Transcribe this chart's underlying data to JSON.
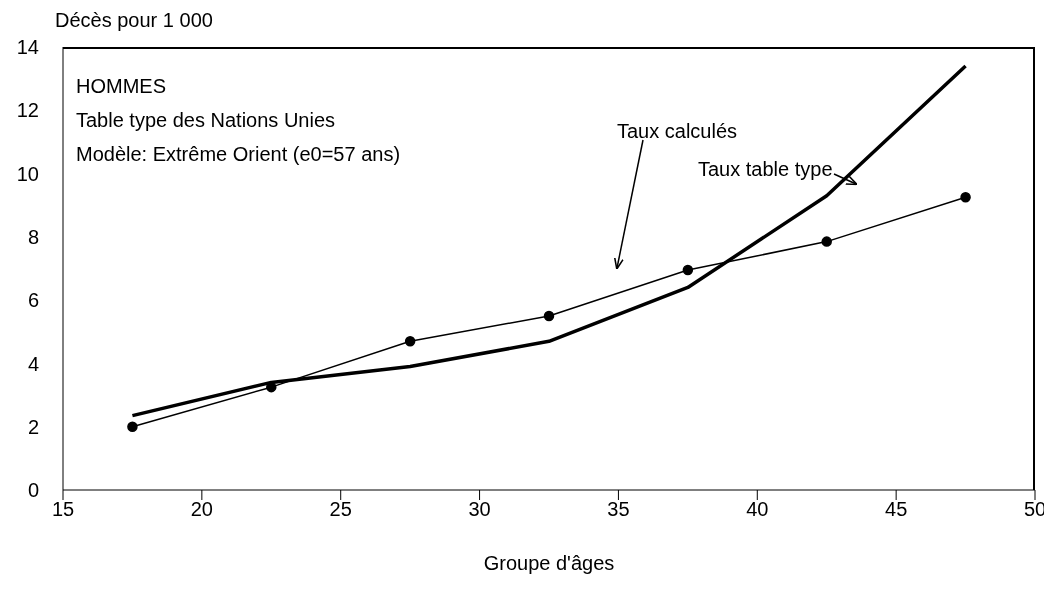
{
  "chart_data": {
    "type": "line",
    "xlabel": "Groupe d'âges",
    "ylabel": "Décès pour 1 000",
    "annotations": [
      "HOMMES",
      "Table type des Nations Unies",
      "Modèle: Extrême Orient (e0=57 ans)"
    ],
    "x": [
      17.5,
      22.5,
      27.5,
      32.5,
      37.5,
      42.5,
      47.5
    ],
    "series": [
      {
        "name": "Taux calculés",
        "color": "#000000",
        "marker": "circle",
        "values": [
          2.0,
          3.25,
          4.7,
          5.5,
          6.95,
          7.85,
          9.25
        ]
      },
      {
        "name": "Taux table type",
        "color": "#000000",
        "marker": "none",
        "values": [
          2.35,
          3.4,
          3.9,
          4.7,
          6.4,
          9.3,
          13.4
        ]
      }
    ],
    "xlim": [
      15,
      50
    ],
    "xticks": [
      15,
      20,
      25,
      30,
      35,
      40,
      45,
      50
    ],
    "ylim": [
      0,
      14
    ],
    "yticks": [
      0,
      2,
      4,
      6,
      8,
      10,
      12,
      14
    ]
  }
}
